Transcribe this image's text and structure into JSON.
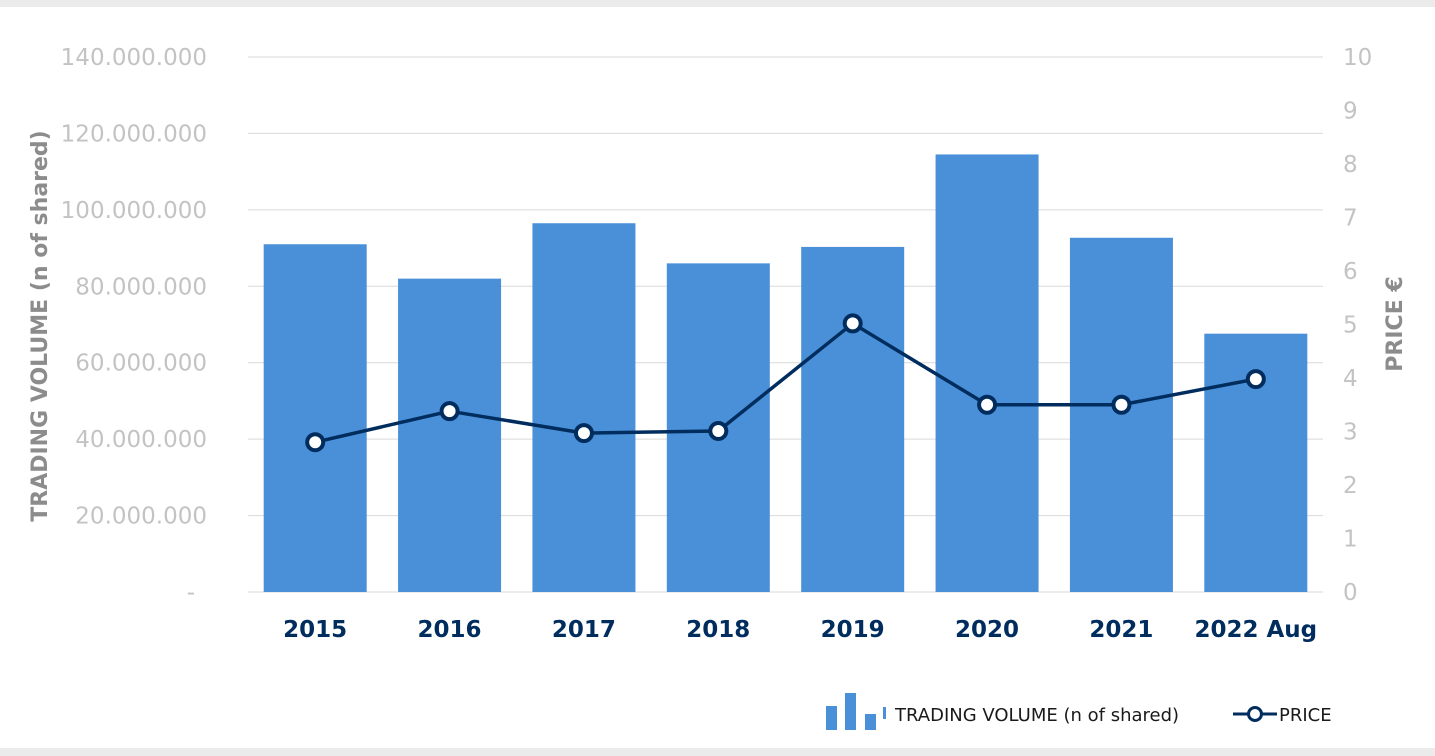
{
  "chart_data": {
    "type": "bar",
    "title": "",
    "categories": [
      "2015",
      "2016",
      "2017",
      "2018",
      "2019",
      "2020",
      "2021",
      "2022 Aug"
    ],
    "series": [
      {
        "name": "TRADING  VOLUME (n of shared)",
        "type": "bar",
        "axis": "left",
        "color": "#4a90d9",
        "values": [
          91000000,
          82000000,
          96500000,
          86000000,
          90300000,
          114500000,
          92700000,
          67600000
        ]
      },
      {
        "name": "PRICE",
        "type": "line",
        "axis": "right",
        "color": "#002d5e",
        "values": [
          2.8,
          3.38,
          2.97,
          3.01,
          5.02,
          3.5,
          3.5,
          3.98
        ]
      }
    ],
    "y_left": {
      "label": "TRADING  VOLUME (n of shared)",
      "range": [
        0,
        140000000
      ],
      "ticks": [
        0,
        20000000,
        40000000,
        60000000,
        80000000,
        100000000,
        120000000,
        140000000
      ],
      "tick_labels": [
        "-",
        "20.000.000",
        "40.000.000",
        "60.000.000",
        "80.000.000",
        "100.000.000",
        "120.000.000",
        "140.000.000"
      ]
    },
    "y_right": {
      "label": "PRICE €",
      "range": [
        0,
        10
      ],
      "ticks": [
        0,
        1,
        2,
        3,
        4,
        5,
        6,
        7,
        8,
        9,
        10
      ],
      "tick_labels": [
        "0",
        "1",
        "2",
        "3",
        "4",
        "5",
        "6",
        "7",
        "8",
        "9",
        "10"
      ]
    },
    "grid": true,
    "legend": {
      "position": "bottom-right",
      "entries": [
        "TRADING  VOLUME (n of shared)",
        "PRICE"
      ]
    },
    "colors": {
      "bar": "#4a90d9",
      "line": "#002d5e",
      "grid": "#d9d9d9",
      "tick_text": "#c3c3c3",
      "axis_title": "#8c8c8c",
      "category_text": "#002d5e"
    }
  }
}
